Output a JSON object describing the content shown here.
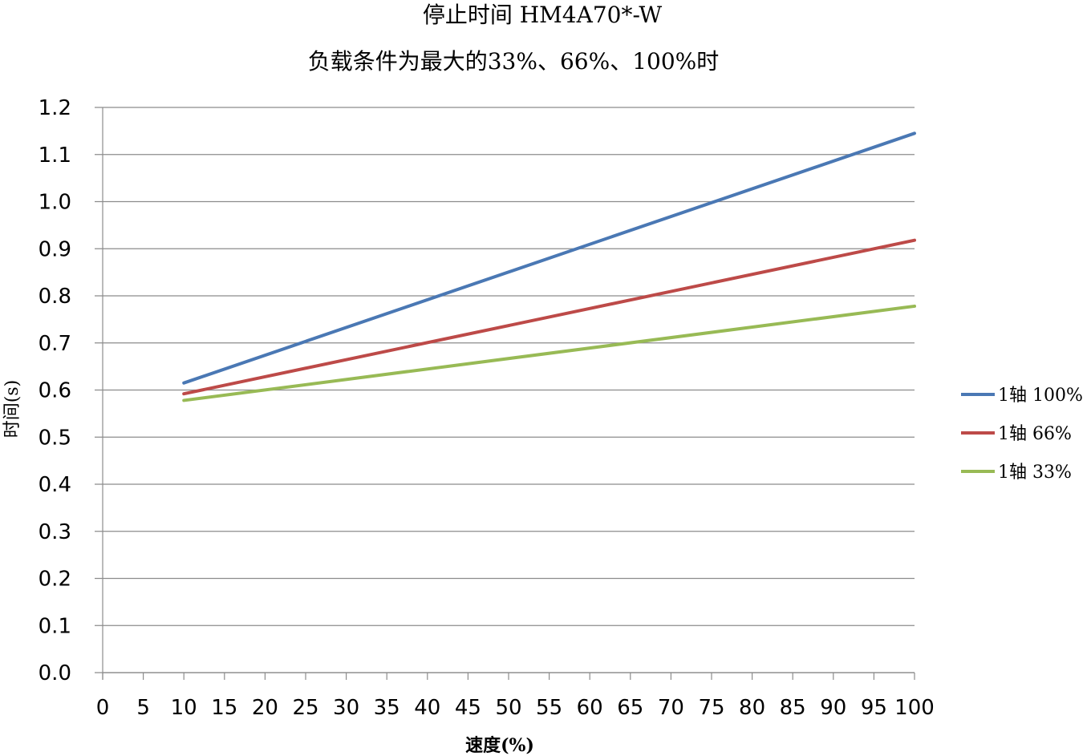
{
  "chart_data": {
    "type": "line",
    "title": "停止时间 HM4A70*-W",
    "subtitle": "负载条件为最大的33%、66%、100%时",
    "xlabel": "速度(%)",
    "ylabel": "时间(s)",
    "xlim": [
      0,
      100
    ],
    "ylim": [
      0,
      1.2
    ],
    "x_ticks": [
      "0",
      "5",
      "10",
      "15",
      "20",
      "25",
      "30",
      "35",
      "40",
      "45",
      "50",
      "55",
      "60",
      "65",
      "70",
      "75",
      "80",
      "85",
      "90",
      "95",
      "100"
    ],
    "y_ticks": [
      "0.0",
      "0.1",
      "0.2",
      "0.3",
      "0.4",
      "0.5",
      "0.6",
      "0.7",
      "0.8",
      "0.9",
      "1.0",
      "1.1",
      "1.2"
    ],
    "grid": true,
    "legend_position": "right",
    "series": [
      {
        "name": "1轴 100%",
        "color": "#4a78b4",
        "x": [
          10,
          100
        ],
        "y": [
          0.615,
          1.145
        ]
      },
      {
        "name": "1轴 66%",
        "color": "#bd4a48",
        "x": [
          10,
          100
        ],
        "y": [
          0.592,
          0.918
        ]
      },
      {
        "name": "1轴 33%",
        "color": "#98ba55",
        "x": [
          10,
          100
        ],
        "y": [
          0.578,
          0.778
        ]
      }
    ]
  }
}
